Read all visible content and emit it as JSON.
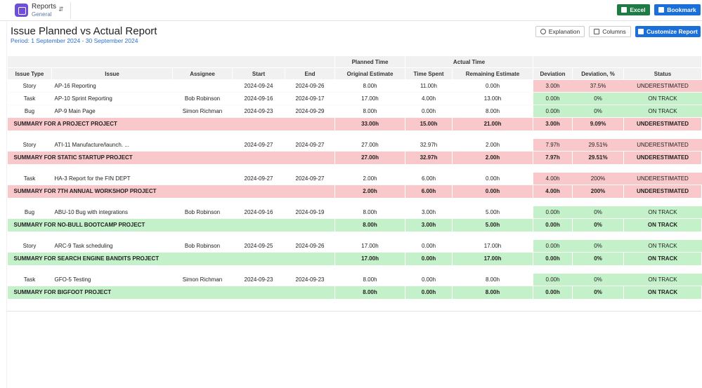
{
  "header": {
    "app": "Reports",
    "section": "General",
    "excel": "Excel",
    "bookmark": "Bookmark"
  },
  "report": {
    "title": "Issue Planned vs Actual Report",
    "period": "Period: 1 September 2024 - 30 September 2024",
    "buttons": [
      "Explanation",
      "Columns",
      "Customize Report"
    ]
  },
  "table": {
    "groups": [
      "Planned Time",
      "Actual Time"
    ],
    "columns": [
      "Issue Type",
      "Issue",
      "Assignee",
      "Start",
      "End",
      "Original Estimate",
      "Time Spent",
      "Remaining Estimate",
      "Deviation",
      "Deviation, %",
      "Status"
    ],
    "projects": [
      {
        "issues": [
          {
            "cells": [
              "Story",
              "AP-16 Reporting",
              null,
              "2024-09-24",
              "2024-09-26",
              "8.00h",
              "11.00h",
              "0.00h",
              "3.00h",
              "37.5%",
              "UNDERESTIMATED"
            ],
            "color": "#f8c8cb"
          },
          {
            "cells": [
              "Task",
              "AP-10 Sprint Reporting",
              "Bob Robinson",
              "2024-09-16",
              "2024-09-17",
              "17.00h",
              "4.00h",
              "13.00h",
              "0.00h",
              "0%",
              "ON TRACK"
            ],
            "color": "#c4f0ca"
          },
          {
            "cells": [
              "Bug",
              "AP-9 Main Page",
              "Simon Richman",
              "2024-09-23",
              "2024-09-29",
              "8.00h",
              "0.00h",
              "8.00h",
              "0.00h",
              "0%",
              "ON TRACK"
            ],
            "color": "#c4f0ca"
          }
        ],
        "summary": {
          "label": "SUMMARY FOR A PROJECT PROJECT",
          "cells": [
            "33.00h",
            "15.00h",
            "21.00h",
            "3.00h",
            "9.09%",
            "UNDERESTIMATED"
          ],
          "color": "#f8c8cb"
        }
      },
      {
        "issues": [
          {
            "cells": [
              "Story",
              "ATI-11 Manufacture/launch. ...",
              null,
              "2024-09-27",
              "2024-09-27",
              "27.00h",
              "32.97h",
              "2.00h",
              "7.97h",
              "29.51%",
              "UNDERESTIMATED"
            ],
            "color": "#f8c8cb"
          }
        ],
        "summary": {
          "label": "SUMMARY FOR STATIC STARTUP PROJECT",
          "cells": [
            "27.00h",
            "32.97h",
            "2.00h",
            "7.97h",
            "29.51%",
            "UNDERESTIMATED"
          ],
          "color": "#f8c8cb"
        }
      },
      {
        "issues": [
          {
            "cells": [
              "Task",
              "HA-3 Report for the FIN DEPT",
              null,
              "2024-09-27",
              "2024-09-27",
              "2.00h",
              "6.00h",
              "0.00h",
              "4.00h",
              "200%",
              "UNDERESTIMATED"
            ],
            "color": "#f8c8cb"
          }
        ],
        "summary": {
          "label": "SUMMARY FOR 7TH ANNUAL WORKSHOP PROJECT",
          "cells": [
            "2.00h",
            "6.00h",
            "0.00h",
            "4.00h",
            "200%",
            "UNDERESTIMATED"
          ],
          "color": "#f8c8cb"
        }
      },
      {
        "issues": [
          {
            "cells": [
              "Bug",
              "ABU-10 Bug with integrations",
              "Bob Robinson",
              "2024-09-16",
              "2024-09-19",
              "8.00h",
              "3.00h",
              "5.00h",
              "0.00h",
              "0%",
              "ON TRACK"
            ],
            "color": "#c4f0ca"
          }
        ],
        "summary": {
          "label": "SUMMARY FOR NO-BULL BOOTCAMP PROJECT",
          "cells": [
            "8.00h",
            "3.00h",
            "5.00h",
            "0.00h",
            "0%",
            "ON TRACK"
          ],
          "color": "#c4f0ca"
        }
      },
      {
        "issues": [
          {
            "cells": [
              "Story",
              "ARC-9 Task scheduling",
              "Bob Robinson",
              "2024-09-25",
              "2024-09-26",
              "17.00h",
              "0.00h",
              "17.00h",
              "0.00h",
              "0%",
              "ON TRACK"
            ],
            "color": "#c4f0ca"
          }
        ],
        "summary": {
          "label": "SUMMARY FOR SEARCH ENGINE BANDITS PROJECT",
          "cells": [
            "17.00h",
            "0.00h",
            "17.00h",
            "0.00h",
            "0%",
            "ON TRACK"
          ],
          "color": "#c4f0ca"
        }
      },
      {
        "issues": [
          {
            "cells": [
              "Task",
              "GFO-5 Testing",
              "Simon Richman",
              "2024-09-23",
              "2024-09-23",
              "8.00h",
              "0.00h",
              "8.00h",
              "0.00h",
              "0%",
              "ON TRACK"
            ],
            "color": "#c4f0ca"
          }
        ],
        "summary": {
          "label": "SUMMARY FOR BIGFOOT PROJECT",
          "cells": [
            "8.00h",
            "0.00h",
            "8.00h",
            "0.00h",
            "0%",
            "ON TRACK"
          ],
          "color": "#c4f0ca"
        }
      }
    ]
  }
}
